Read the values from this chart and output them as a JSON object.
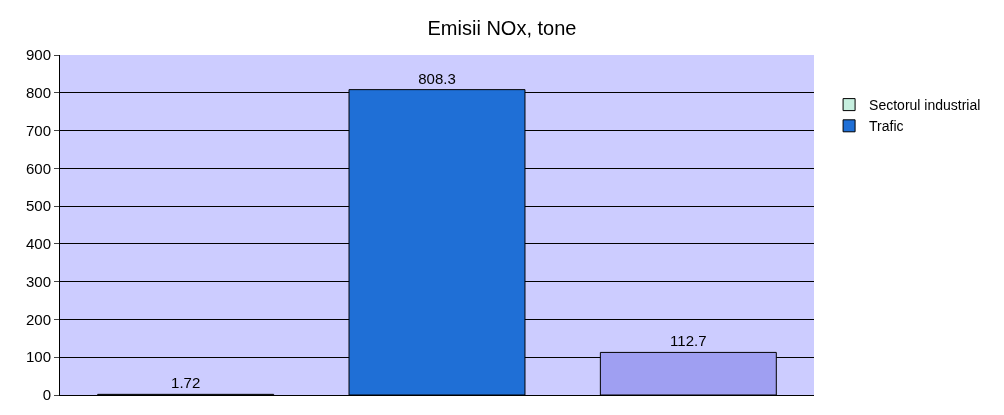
{
  "chart_data": {
    "type": "bar",
    "title": "Emisii NOx, tone",
    "categories": [
      null,
      null,
      null
    ],
    "series": [
      {
        "name": "Sectorul industrial",
        "color": "#c6efdf",
        "values": [
          1.72,
          null,
          null
        ]
      },
      {
        "name": "Trafic",
        "color": "#1f6fd6",
        "values": [
          null,
          808.3,
          null
        ]
      },
      {
        "color": "#9f9ff2",
        "values": [
          null,
          null,
          112.7
        ]
      }
    ],
    "ylim": [
      0,
      900
    ],
    "yticks": [
      0,
      100,
      200,
      300,
      400,
      500,
      600,
      700,
      800,
      900
    ],
    "grid": "y",
    "legend": "right",
    "data_labels": true
  }
}
